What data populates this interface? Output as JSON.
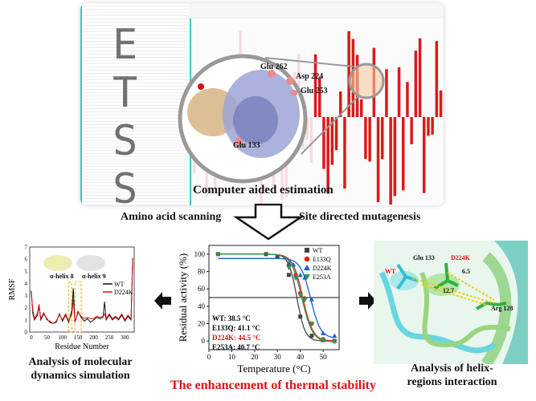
{
  "top": {
    "etss_letters": [
      "E",
      "T",
      "S",
      "S"
    ],
    "residue_labels": [
      "Glu 262",
      "Asp 224",
      "Glu 253",
      "Glu 133"
    ],
    "caption": "Computer aided estimation",
    "left_method": "Amino acid scanning",
    "right_method": "Site directed mutagenesis"
  },
  "left_panel": {
    "caption": "Analysis of molecular dynamics simulation",
    "helix_labels": [
      "α-helix 8",
      "α-helix 9"
    ]
  },
  "center_panel": {
    "caption": "The enhancement of thermal stability",
    "tm_labels": [
      {
        "text": "WT: 38.5 °C",
        "color": "#111111"
      },
      {
        "text": "E133Q: 41.1 °C",
        "color": "#111111"
      },
      {
        "text": "D224K: 44.5 °C",
        "color": "#e01010"
      },
      {
        "text": "E253A: 40.7 °C",
        "color": "#111111"
      }
    ]
  },
  "right_panel": {
    "caption": "Analysis of helix-regions interaction",
    "labels": {
      "wt": "WT",
      "glu": "Glu 133",
      "mut": "D224K",
      "d1": "6.5",
      "d2": "12.7",
      "arg": "Arg 128"
    }
  },
  "chart_data": [
    {
      "type": "line",
      "title": "",
      "xlabel": "Temperature (°C)",
      "ylabel": "Residual activity (%)",
      "xlim": [
        0,
        57
      ],
      "ylim": [
        -10,
        110
      ],
      "xticks": [
        0,
        10,
        20,
        30,
        40,
        50
      ],
      "yticks": [
        0,
        20,
        40,
        60,
        80,
        100
      ],
      "reference_line_y": 50,
      "legend": "top-right",
      "series": [
        {
          "name": "WT",
          "color": "#444444",
          "marker": "square",
          "tm": 38.5,
          "top": 100,
          "bottom": 0,
          "slope": 1.8,
          "x": [
            4,
            25,
            30,
            35,
            40,
            45,
            50,
            55
          ],
          "y": [
            100,
            100,
            97,
            76,
            28,
            6,
            1,
            0
          ]
        },
        {
          "name": "E133Q",
          "color": "#e02020",
          "marker": "circle",
          "tm": 41.1,
          "top": 100,
          "bottom": 0,
          "slope": 2.2,
          "x": [
            4,
            35,
            38,
            40,
            42,
            45,
            50,
            55
          ],
          "y": [
            100,
            87,
            76,
            55,
            49,
            20,
            2,
            0
          ]
        },
        {
          "name": "D224K",
          "color": "#1a5fd6",
          "marker": "triangle-up",
          "tm": 44.5,
          "top": 95,
          "bottom": 3,
          "slope": 2.2,
          "x": [
            35,
            37,
            40,
            42,
            45,
            50,
            55
          ],
          "y": [
            90,
            88,
            76,
            73,
            48,
            9,
            6
          ]
        },
        {
          "name": "E253A",
          "color": "#20a050",
          "marker": "triangle-down",
          "tm": 40.7,
          "top": 100,
          "bottom": -1,
          "slope": 2.3,
          "x": [
            4,
            35,
            38,
            40,
            42,
            45,
            50,
            55
          ],
          "y": [
            100,
            84,
            72,
            52,
            47,
            20,
            1,
            -1
          ]
        }
      ]
    },
    {
      "type": "line",
      "xlabel": "Residue Number",
      "ylabel": "RMSF",
      "xlim": [
        -5,
        330
      ],
      "ylim": [
        0,
        7
      ],
      "xticks": [
        0,
        50,
        100,
        150,
        200,
        250,
        300
      ],
      "yticks": [
        0,
        1,
        2,
        3,
        4,
        5,
        6,
        7
      ],
      "legend": "right",
      "series": [
        {
          "name": "WT",
          "color": "#111111",
          "x": [
            0,
            5,
            10,
            20,
            25,
            30,
            40,
            50,
            60,
            70,
            80,
            90,
            100,
            110,
            120,
            130,
            135,
            140,
            150,
            160,
            170,
            180,
            190,
            200,
            210,
            220,
            230,
            235,
            240,
            250,
            260,
            270,
            280,
            290,
            300,
            310,
            320,
            325
          ],
          "y": [
            3.4,
            1.5,
            1.0,
            1.4,
            2.2,
            1.0,
            1.5,
            1.1,
            0.8,
            0.7,
            0.8,
            1.5,
            0.9,
            1.4,
            0.8,
            1.8,
            3.6,
            0.8,
            1.7,
            1.2,
            0.9,
            1.1,
            0.8,
            1.0,
            1.2,
            1.1,
            1.2,
            2.5,
            1.0,
            1.4,
            1.0,
            1.2,
            1.0,
            1.4,
            0.9,
            1.3,
            1.0,
            6.1
          ]
        },
        {
          "name": "D224K",
          "color": "#e01010",
          "x": [
            0,
            5,
            10,
            20,
            25,
            30,
            40,
            50,
            60,
            70,
            80,
            90,
            100,
            110,
            120,
            130,
            135,
            140,
            150,
            160,
            170,
            180,
            190,
            200,
            210,
            220,
            230,
            235,
            240,
            250,
            260,
            270,
            280,
            290,
            300,
            310,
            320,
            325
          ],
          "y": [
            3.2,
            1.8,
            1.1,
            1.6,
            2.3,
            1.1,
            1.6,
            1.0,
            0.9,
            0.7,
            0.9,
            1.4,
            1.0,
            1.5,
            0.9,
            1.5,
            2.7,
            0.8,
            1.6,
            1.3,
            1.1,
            1.2,
            1.1,
            1.1,
            1.3,
            1.2,
            1.3,
            1.5,
            1.1,
            1.5,
            1.1,
            1.3,
            1.1,
            1.5,
            1.0,
            1.4,
            1.1,
            6.0
          ]
        }
      ]
    }
  ]
}
